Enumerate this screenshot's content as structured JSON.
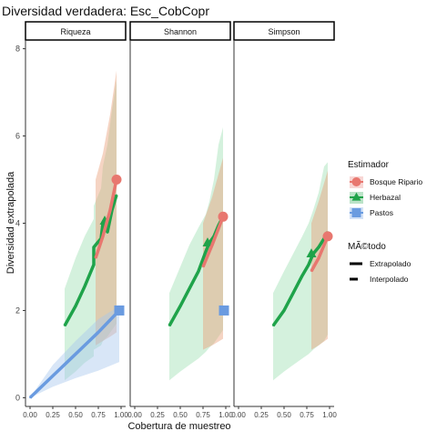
{
  "chart_data": {
    "type": "line",
    "title": "Diversidad verdadera: Esc_CobCopr",
    "xlabel": "Cobertura de muestreo",
    "ylabel": "Diversidad extrapolada",
    "xlim": [
      -0.05,
      1.05
    ],
    "ylim": [
      -0.2,
      8.2
    ],
    "x_ticks": [
      "0.00",
      "0.25",
      "0.50",
      "0.75",
      "1.00"
    ],
    "x_tick_values": [
      0,
      0.25,
      0.5,
      0.75,
      1.0
    ],
    "y_ticks": [
      "0",
      "2",
      "4",
      "6",
      "8"
    ],
    "y_tick_values": [
      0,
      2,
      4,
      6,
      8
    ],
    "grid": false,
    "legend_position": "right",
    "colors": {
      "bosque": "#E8776F",
      "herbazal": "#1FA34A",
      "pastos": "#6A9BE0",
      "herbazal_ribbon": "#9FE0B4",
      "bosque_ribbon": "#E8A07A",
      "pastos_ribbon": "#A8C8EE"
    },
    "legend": {
      "estimador_title": "Estimador",
      "estimador_items": [
        {
          "label": "Bosque Ripario",
          "color_key": "bosque",
          "shape": "circle"
        },
        {
          "label": "Herbazal",
          "color_key": "herbazal",
          "shape": "triangle"
        },
        {
          "label": "Pastos",
          "color_key": "pastos",
          "shape": "square"
        }
      ],
      "metodo_title": "MÃ©todo",
      "metodo_items": [
        {
          "label": "Extrapolado",
          "style": "solid"
        },
        {
          "label": "Interpolado",
          "style": "dashed"
        }
      ]
    },
    "facets": [
      {
        "label": "Riqueza",
        "series": [
          {
            "color_key": "herbazal",
            "ribbon_key": "herbazal_ribbon",
            "x": [
              0.38,
              0.5,
              0.6,
              0.7,
              0.7,
              0.78,
              0.8,
              0.85,
              0.9,
              0.95
            ],
            "y": [
              1.65,
              2.1,
              2.55,
              3.05,
              3.45,
              3.65,
              4.0,
              3.8,
              4.3,
              4.65
            ],
            "lower": [
              0.4,
              0.6,
              0.8,
              0.95,
              1.1,
              1.2,
              1.3,
              1.4,
              1.55,
              1.7
            ],
            "upper": [
              2.5,
              3.2,
              3.7,
              4.1,
              4.4,
              4.8,
              5.3,
              5.8,
              6.6,
              7.3
            ],
            "marker": {
              "x": 0.82,
              "y": 4.05,
              "shape": "triangle"
            }
          },
          {
            "color_key": "bosque",
            "ribbon_key": "bosque_ribbon",
            "x": [
              0.72,
              0.8,
              0.88,
              0.95
            ],
            "y": [
              3.2,
              3.7,
              4.3,
              5.0
            ],
            "lower": [
              1.2,
              1.3,
              1.4,
              1.5
            ],
            "upper": [
              5.0,
              5.6,
              6.5,
              7.5
            ],
            "marker": {
              "x": 0.95,
              "y": 5.0,
              "shape": "circle"
            }
          },
          {
            "color_key": "pastos",
            "ribbon_key": "pastos_ribbon",
            "x": [
              0.0,
              0.25,
              0.5,
              0.75,
              0.98
            ],
            "y": [
              0.0,
              0.5,
              1.0,
              1.5,
              2.0
            ],
            "lower": [
              0.0,
              0.25,
              0.45,
              0.62,
              0.82
            ],
            "upper": [
              0.0,
              0.75,
              1.3,
              1.8,
              2.1
            ],
            "marker": {
              "x": 0.98,
              "y": 2.0,
              "shape": "square"
            }
          }
        ]
      },
      {
        "label": "Shannon",
        "series": [
          {
            "color_key": "herbazal",
            "ribbon_key": "herbazal_ribbon",
            "x": [
              0.38,
              0.5,
              0.6,
              0.7,
              0.78,
              0.82,
              0.87,
              0.92,
              0.97
            ],
            "y": [
              1.65,
              2.1,
              2.5,
              2.9,
              3.35,
              3.55,
              3.7,
              3.95,
              4.15
            ],
            "lower": [
              0.4,
              0.6,
              0.75,
              0.9,
              1.05,
              1.15,
              1.25,
              1.4,
              1.55
            ],
            "upper": [
              2.4,
              3.0,
              3.5,
              3.9,
              4.2,
              4.5,
              5.0,
              5.8,
              6.2
            ],
            "marker": {
              "x": 0.8,
              "y": 3.55,
              "shape": "triangle"
            }
          },
          {
            "color_key": "bosque",
            "ribbon_key": "bosque_ribbon",
            "x": [
              0.75,
              0.85,
              0.97
            ],
            "y": [
              3.0,
              3.5,
              4.15
            ],
            "lower": [
              1.1,
              1.2,
              1.35
            ],
            "upper": [
              4.0,
              4.6,
              5.5
            ],
            "marker": {
              "x": 0.97,
              "y": 4.15,
              "shape": "circle"
            }
          }
        ],
        "extra_markers": [
          {
            "x": 0.98,
            "y": 2.0,
            "shape": "square",
            "color_key": "pastos"
          }
        ]
      },
      {
        "label": "Simpson",
        "series": [
          {
            "color_key": "herbazal",
            "ribbon_key": "herbazal_ribbon",
            "x": [
              0.38,
              0.5,
              0.6,
              0.7,
              0.77,
              0.82,
              0.88,
              0.94,
              0.98
            ],
            "y": [
              1.65,
              2.0,
              2.4,
              2.8,
              3.05,
              3.3,
              3.45,
              3.65,
              3.8
            ],
            "lower": [
              0.4,
              0.6,
              0.75,
              0.9,
              1.0,
              1.1,
              1.2,
              1.3,
              1.45
            ],
            "upper": [
              2.4,
              2.9,
              3.3,
              3.7,
              4.0,
              4.3,
              4.7,
              5.3,
              5.4
            ],
            "marker": {
              "x": 0.8,
              "y": 3.3,
              "shape": "triangle"
            }
          },
          {
            "color_key": "bosque",
            "ribbon_key": "bosque_ribbon",
            "x": [
              0.8,
              0.88,
              0.98
            ],
            "y": [
              2.9,
              3.2,
              3.7
            ],
            "lower": [
              1.1,
              1.2,
              1.35
            ],
            "upper": [
              4.0,
              4.5,
              5.2
            ],
            "marker": {
              "x": 0.98,
              "y": 3.7,
              "shape": "circle"
            }
          }
        ]
      }
    ]
  }
}
